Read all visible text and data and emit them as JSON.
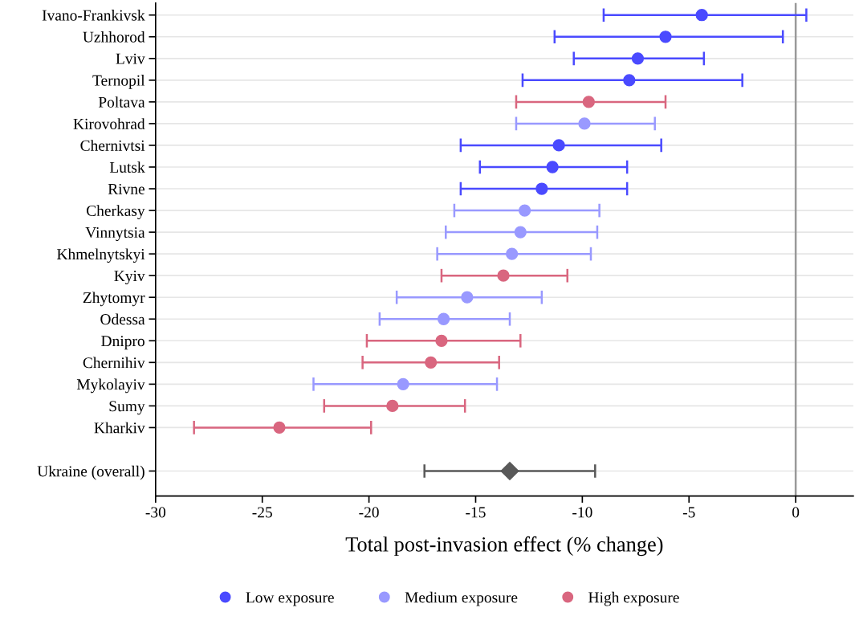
{
  "chart_data": {
    "type": "scatter",
    "orientation": "horizontal",
    "xlabel": "Total post-invasion effect (% change)",
    "categories": [
      "Ivano-Frankivsk",
      "Uzhhorod",
      "Lviv",
      "Ternopil",
      "Poltava",
      "Kirovohrad",
      "Chernivtsi",
      "Lutsk",
      "Rivne",
      "Cherkasy",
      "Vinnytsia",
      "Khmelnytskyi",
      "Kyiv",
      "Zhytomyr",
      "Odessa",
      "Dnipro",
      "Chernihiv",
      "Mykolayiv",
      "Sumy",
      "Kharkiv",
      null,
      "Ukraine (overall)"
    ],
    "series": [
      {
        "name": "Low exposure",
        "color": "#4a4aff",
        "marker": "circle",
        "values": [
          -4.4,
          -6.1,
          -7.4,
          -7.8,
          null,
          null,
          -11.1,
          -11.4,
          -11.9,
          null,
          null,
          null,
          null,
          null,
          null,
          null,
          null,
          null,
          null,
          null,
          null,
          null
        ],
        "errors": [
          [
            -9.0,
            0.5
          ],
          [
            -11.3,
            -0.6
          ],
          [
            -10.4,
            -4.3
          ],
          [
            -12.8,
            -2.5
          ],
          null,
          null,
          [
            -15.7,
            -6.3
          ],
          [
            -14.8,
            -7.9
          ],
          [
            -15.7,
            -7.9
          ],
          null,
          null,
          null,
          null,
          null,
          null,
          null,
          null,
          null,
          null,
          null,
          null,
          null
        ]
      },
      {
        "name": "Medium exposure",
        "color": "#9999ff",
        "marker": "circle",
        "values": [
          null,
          null,
          null,
          null,
          null,
          -9.9,
          null,
          null,
          null,
          -12.7,
          -12.9,
          -13.3,
          null,
          -15.4,
          -16.5,
          null,
          null,
          -18.4,
          null,
          null,
          null,
          null
        ],
        "errors": [
          null,
          null,
          null,
          null,
          null,
          [
            -13.1,
            -6.6
          ],
          null,
          null,
          null,
          [
            -16.0,
            -9.2
          ],
          [
            -16.4,
            -9.3
          ],
          [
            -16.8,
            -9.6
          ],
          null,
          [
            -18.7,
            -11.9
          ],
          [
            -19.5,
            -13.4
          ],
          null,
          null,
          [
            -22.6,
            -14.0
          ],
          null,
          null,
          null,
          null
        ]
      },
      {
        "name": "High exposure",
        "color": "#d9667f",
        "marker": "circle",
        "values": [
          null,
          null,
          null,
          null,
          -9.7,
          null,
          null,
          null,
          null,
          null,
          null,
          null,
          -13.7,
          null,
          null,
          -16.6,
          -17.1,
          null,
          -18.9,
          -24.2,
          null,
          null
        ],
        "errors": [
          null,
          null,
          null,
          null,
          [
            -13.1,
            -6.1
          ],
          null,
          null,
          null,
          null,
          null,
          null,
          null,
          [
            -16.6,
            -10.7
          ],
          null,
          null,
          [
            -20.1,
            -12.9
          ],
          [
            -20.3,
            -13.9
          ],
          null,
          [
            -22.1,
            -15.5
          ],
          [
            -28.2,
            -19.9
          ],
          null,
          null
        ]
      },
      {
        "color": "#595959",
        "marker": "diamond",
        "values": [
          null,
          null,
          null,
          null,
          null,
          null,
          null,
          null,
          null,
          null,
          null,
          null,
          null,
          null,
          null,
          null,
          null,
          null,
          null,
          null,
          null,
          -13.4
        ],
        "errors": [
          null,
          null,
          null,
          null,
          null,
          null,
          null,
          null,
          null,
          null,
          null,
          null,
          null,
          null,
          null,
          null,
          null,
          null,
          null,
          null,
          null,
          [
            -17.4,
            -9.4
          ]
        ]
      }
    ],
    "xlim": [
      -30,
      2.7
    ],
    "xticks": [
      -30,
      -25,
      -20,
      -15,
      -10,
      -5,
      0
    ],
    "ref_lines": [
      {
        "axis": "x",
        "value": 0,
        "color": "#999999"
      }
    ],
    "grid": "y",
    "legend": "bottom"
  }
}
